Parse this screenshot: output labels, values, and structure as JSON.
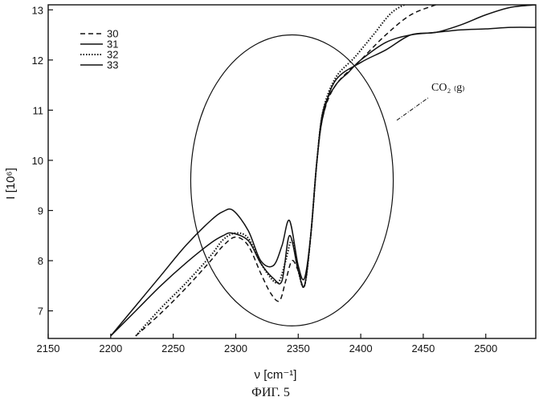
{
  "chart_data": {
    "type": "line",
    "xlabel": "ν [cm⁻¹]",
    "ylabel": "I [10⁶]",
    "caption": "ФИГ. 5",
    "xlim": [
      2150,
      2540
    ],
    "ylim": [
      6.45,
      13.1
    ],
    "xticks": [
      2150,
      2200,
      2250,
      2300,
      2350,
      2400,
      2450,
      2500
    ],
    "yticks": [
      7,
      8,
      9,
      10,
      11,
      12,
      13
    ],
    "grid": false,
    "legend_position": "top-left",
    "annotation": {
      "text": "CO₂ ₍g₎",
      "shape": "ellipse",
      "center": [
        2345,
        9.6
      ],
      "radii": [
        81,
        2.9
      ]
    },
    "series": [
      {
        "name": "30",
        "style": "dashed",
        "x": [
          2220,
          2240,
          2260,
          2280,
          2290,
          2300,
          2310,
          2320,
          2328,
          2335,
          2340,
          2345,
          2350,
          2355,
          2360,
          2365,
          2370,
          2380,
          2400,
          2420,
          2440,
          2460,
          2470
        ],
        "y": [
          6.5,
          6.95,
          7.45,
          8.0,
          8.3,
          8.47,
          8.3,
          7.75,
          7.35,
          7.2,
          7.6,
          8.0,
          7.8,
          7.5,
          8.5,
          10.0,
          10.9,
          11.5,
          12.0,
          12.5,
          12.9,
          13.1,
          13.2
        ]
      },
      {
        "name": "31",
        "style": "solid",
        "x": [
          2200,
          2220,
          2240,
          2260,
          2280,
          2290,
          2297,
          2310,
          2320,
          2330,
          2337,
          2343,
          2350,
          2355,
          2360,
          2365,
          2370,
          2380,
          2400,
          2420,
          2440,
          2460,
          2480,
          2500,
          2520,
          2540
        ],
        "y": [
          6.5,
          7.0,
          7.5,
          7.95,
          8.35,
          8.5,
          8.55,
          8.4,
          7.95,
          7.65,
          7.6,
          8.5,
          7.8,
          7.5,
          8.5,
          10.0,
          10.9,
          11.6,
          11.95,
          12.2,
          12.5,
          12.55,
          12.7,
          12.9,
          13.05,
          13.1
        ]
      },
      {
        "name": "32",
        "style": "dotted",
        "x": [
          2220,
          2240,
          2260,
          2280,
          2290,
          2300,
          2310,
          2320,
          2330,
          2335,
          2340,
          2345,
          2350,
          2355,
          2360,
          2365,
          2370,
          2380,
          2395,
          2410,
          2425,
          2440,
          2450
        ],
        "y": [
          6.5,
          7.05,
          7.55,
          8.1,
          8.42,
          8.55,
          8.45,
          7.95,
          7.6,
          7.6,
          8.0,
          8.4,
          7.8,
          7.5,
          8.5,
          10.0,
          11.0,
          11.65,
          12.05,
          12.5,
          12.95,
          13.15,
          13.2
        ]
      },
      {
        "name": "33",
        "style": "solid",
        "x": [
          2200,
          2220,
          2240,
          2260,
          2280,
          2290,
          2298,
          2310,
          2320,
          2330,
          2337,
          2343,
          2350,
          2355,
          2360,
          2365,
          2370,
          2380,
          2390,
          2400,
          2420,
          2440,
          2460,
          2480,
          2500,
          2520,
          2540
        ],
        "y": [
          6.5,
          7.1,
          7.7,
          8.3,
          8.8,
          8.98,
          9.0,
          8.6,
          8.0,
          7.9,
          8.3,
          8.8,
          7.9,
          7.65,
          8.5,
          10.0,
          11.0,
          11.5,
          11.75,
          12.0,
          12.35,
          12.5,
          12.55,
          12.6,
          12.62,
          12.65,
          12.65
        ]
      }
    ]
  }
}
